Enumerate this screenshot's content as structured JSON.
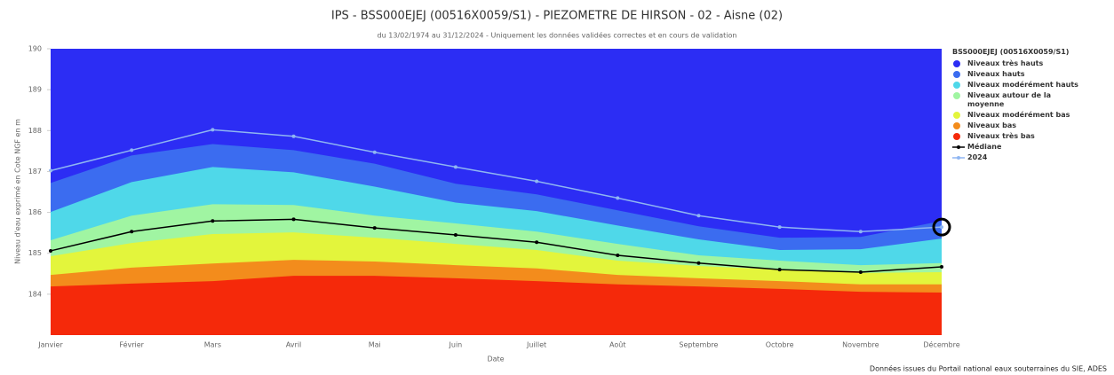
{
  "chart_data": {
    "type": "area-line",
    "title": "IPS - BSS000EJEJ (00516X0059/S1) - PIEZOMETRE DE HIRSON - 02 - Aisne (02)",
    "subtitle": "du 13/02/1974 au 31/12/2024 - Uniquement les données validées correctes et en cours de validation",
    "y_label": "Niveau d'eau exprimé en Cote NGF en m",
    "x_label": "Date",
    "credit": "Données issues du Portail national eaux souterraines du SIE, ADES",
    "legend_title": "BSS000EJEJ (00516X0059/S1)",
    "categories": [
      "Janvier",
      "Février",
      "Mars",
      "Avril",
      "Mai",
      "Juin",
      "Juillet",
      "Août",
      "Septembre",
      "Octobre",
      "Novembre",
      "Décembre"
    ],
    "ylim": [
      183,
      190
    ],
    "yticks": [
      184,
      185,
      186,
      187,
      188,
      189,
      190
    ],
    "series": [
      {
        "name": "Niveaux très hauts",
        "type": "area",
        "color": "#2c2df4"
      },
      {
        "name": "Niveaux hauts",
        "type": "area",
        "color": "#3b6cf0",
        "values": [
          186.72,
          187.39,
          187.67,
          187.52,
          187.19,
          186.7,
          186.44,
          186.05,
          185.66,
          185.38,
          185.4,
          185.79
        ]
      },
      {
        "name": "Niveaux modérément hauts",
        "type": "area",
        "color": "#4fd8e9",
        "values": [
          186.01,
          186.74,
          187.11,
          186.98,
          186.63,
          186.24,
          186.03,
          185.68,
          185.34,
          185.08,
          185.1,
          185.36
        ]
      },
      {
        "name": "Niveaux autour de la moyenne",
        "type": "area",
        "color": "#a0f5a2",
        "values": [
          185.32,
          185.92,
          186.2,
          186.18,
          185.92,
          185.73,
          185.53,
          185.23,
          184.95,
          184.82,
          184.71,
          184.76
        ]
      },
      {
        "name": "Niveaux modérément bas",
        "type": "area",
        "color": "#e3f53c",
        "values": [
          184.93,
          185.25,
          185.47,
          185.51,
          185.38,
          185.23,
          185.08,
          184.82,
          184.69,
          184.6,
          184.52,
          184.54
        ]
      },
      {
        "name": "Niveaux bas",
        "type": "area",
        "color": "#f38c1c",
        "values": [
          184.47,
          184.65,
          184.75,
          184.84,
          184.8,
          184.71,
          184.63,
          184.47,
          184.39,
          184.32,
          184.24,
          184.24
        ]
      },
      {
        "name": "Niveaux très bas",
        "type": "area",
        "color": "#f5290a",
        "values": [
          184.19,
          184.26,
          184.32,
          184.45,
          184.45,
          184.39,
          184.32,
          184.24,
          184.19,
          184.13,
          184.06,
          184.04
        ]
      },
      {
        "name": "Médiane",
        "type": "line",
        "color": "#000000",
        "values": [
          185.06,
          185.53,
          185.79,
          185.83,
          185.62,
          185.45,
          185.27,
          184.95,
          184.76,
          184.6,
          184.54,
          184.67
        ]
      },
      {
        "name": "2024",
        "type": "line",
        "color": "#8fb6f2",
        "values": [
          187.02,
          187.52,
          188.02,
          187.86,
          187.47,
          187.11,
          186.76,
          186.35,
          185.92,
          185.64,
          185.53,
          185.64
        ]
      }
    ]
  }
}
